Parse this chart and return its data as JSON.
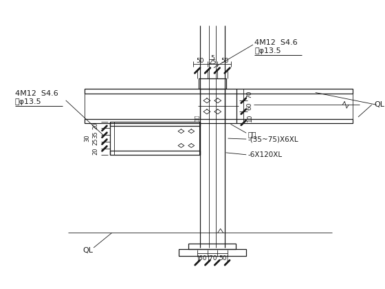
{
  "bg_color": "#ffffff",
  "line_color": "#1a1a1a",
  "annotations": {
    "top_right_label1": "4M12  S4.6",
    "top_right_label2": "简φ13.5",
    "top_right_QL": "QL",
    "left_label1": "4M12  S4.6",
    "left_label2": "简φ13.5",
    "left_QL": "QL",
    "steel_col": "钔柱",
    "label_35_75": "-(35~75)X6XL",
    "label_6x120": "-6X120XL"
  }
}
